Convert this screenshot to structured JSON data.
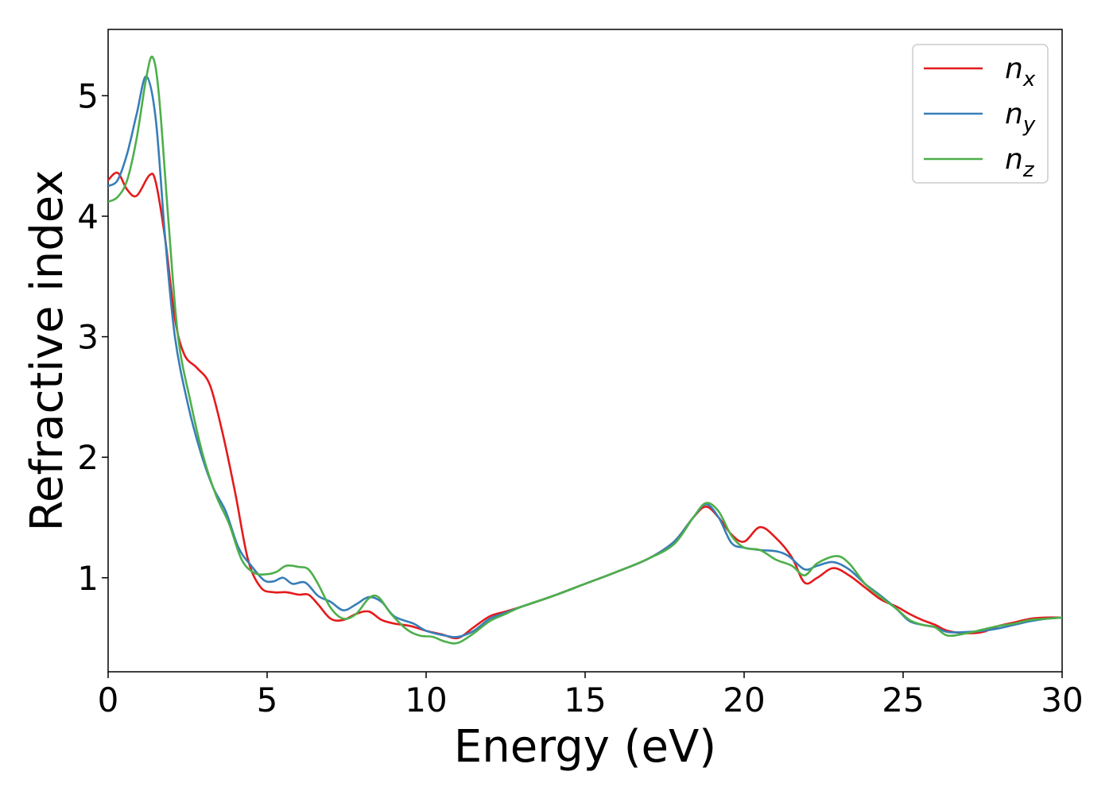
{
  "chart_data": {
    "type": "line",
    "title": "",
    "xlabel": "Energy (eV)",
    "ylabel": "Refractive index",
    "xlim": [
      0,
      30
    ],
    "ylim": [
      0.22,
      5.55
    ],
    "xticks": [
      0,
      5,
      10,
      15,
      20,
      25,
      30
    ],
    "yticks": [
      1,
      2,
      3,
      4,
      5
    ],
    "grid": false,
    "legend_position": "top-right",
    "series": [
      {
        "name": "n_x",
        "label_base": "n",
        "label_sub": "x",
        "color": "#e41a1c",
        "points": [
          [
            0,
            4.3
          ],
          [
            0.3,
            4.36
          ],
          [
            0.6,
            4.22
          ],
          [
            0.9,
            4.17
          ],
          [
            1.3,
            4.34
          ],
          [
            1.5,
            4.28
          ],
          [
            1.8,
            3.8
          ],
          [
            2.1,
            3.15
          ],
          [
            2.4,
            2.85
          ],
          [
            2.8,
            2.74
          ],
          [
            3.2,
            2.6
          ],
          [
            3.6,
            2.2
          ],
          [
            4.0,
            1.7
          ],
          [
            4.4,
            1.15
          ],
          [
            4.8,
            0.92
          ],
          [
            5.2,
            0.88
          ],
          [
            5.6,
            0.88
          ],
          [
            6.0,
            0.86
          ],
          [
            6.3,
            0.86
          ],
          [
            6.6,
            0.78
          ],
          [
            7.0,
            0.66
          ],
          [
            7.4,
            0.65
          ],
          [
            7.8,
            0.7
          ],
          [
            8.2,
            0.72
          ],
          [
            8.6,
            0.65
          ],
          [
            9.0,
            0.62
          ],
          [
            9.5,
            0.6
          ],
          [
            10.0,
            0.56
          ],
          [
            10.5,
            0.53
          ],
          [
            11.0,
            0.5
          ],
          [
            11.5,
            0.59
          ],
          [
            12.0,
            0.68
          ],
          [
            12.5,
            0.72
          ],
          [
            13.0,
            0.76
          ],
          [
            14.0,
            0.85
          ],
          [
            15.0,
            0.95
          ],
          [
            16.0,
            1.05
          ],
          [
            17.0,
            1.16
          ],
          [
            17.8,
            1.3
          ],
          [
            18.4,
            1.5
          ],
          [
            18.8,
            1.59
          ],
          [
            19.2,
            1.5
          ],
          [
            19.6,
            1.36
          ],
          [
            20.0,
            1.3
          ],
          [
            20.5,
            1.42
          ],
          [
            21.0,
            1.33
          ],
          [
            21.5,
            1.17
          ],
          [
            21.9,
            0.96
          ],
          [
            22.3,
            1.0
          ],
          [
            22.8,
            1.08
          ],
          [
            23.3,
            1.02
          ],
          [
            23.8,
            0.92
          ],
          [
            24.3,
            0.82
          ],
          [
            24.8,
            0.76
          ],
          [
            25.2,
            0.7
          ],
          [
            25.6,
            0.65
          ],
          [
            26.0,
            0.61
          ],
          [
            26.4,
            0.56
          ],
          [
            27.0,
            0.54
          ],
          [
            27.5,
            0.55
          ],
          [
            28.0,
            0.6
          ],
          [
            28.5,
            0.63
          ],
          [
            29.0,
            0.66
          ],
          [
            29.5,
            0.67
          ],
          [
            30.0,
            0.67
          ]
        ]
      },
      {
        "name": "n_y",
        "label_base": "n",
        "label_sub": "y",
        "color": "#377eb8",
        "points": [
          [
            0,
            4.25
          ],
          [
            0.3,
            4.3
          ],
          [
            0.6,
            4.52
          ],
          [
            0.9,
            4.85
          ],
          [
            1.2,
            5.16
          ],
          [
            1.5,
            4.8
          ],
          [
            1.8,
            3.8
          ],
          [
            2.1,
            3.0
          ],
          [
            2.5,
            2.45
          ],
          [
            2.9,
            2.05
          ],
          [
            3.3,
            1.75
          ],
          [
            3.7,
            1.55
          ],
          [
            4.1,
            1.25
          ],
          [
            4.5,
            1.1
          ],
          [
            4.9,
            0.98
          ],
          [
            5.2,
            0.97
          ],
          [
            5.5,
            1.0
          ],
          [
            5.8,
            0.95
          ],
          [
            6.2,
            0.96
          ],
          [
            6.6,
            0.85
          ],
          [
            7.0,
            0.8
          ],
          [
            7.4,
            0.73
          ],
          [
            7.8,
            0.78
          ],
          [
            8.2,
            0.84
          ],
          [
            8.6,
            0.8
          ],
          [
            9.0,
            0.68
          ],
          [
            9.6,
            0.62
          ],
          [
            10.0,
            0.56
          ],
          [
            10.6,
            0.52
          ],
          [
            11.0,
            0.51
          ],
          [
            11.5,
            0.56
          ],
          [
            12.0,
            0.66
          ],
          [
            12.5,
            0.71
          ],
          [
            13.0,
            0.76
          ],
          [
            14.0,
            0.85
          ],
          [
            15.0,
            0.95
          ],
          [
            16.0,
            1.05
          ],
          [
            17.0,
            1.16
          ],
          [
            17.8,
            1.3
          ],
          [
            18.4,
            1.5
          ],
          [
            18.8,
            1.61
          ],
          [
            19.2,
            1.5
          ],
          [
            19.6,
            1.29
          ],
          [
            20.0,
            1.25
          ],
          [
            20.5,
            1.23
          ],
          [
            21.0,
            1.22
          ],
          [
            21.4,
            1.18
          ],
          [
            21.9,
            1.07
          ],
          [
            22.3,
            1.1
          ],
          [
            22.8,
            1.13
          ],
          [
            23.3,
            1.07
          ],
          [
            23.8,
            0.95
          ],
          [
            24.3,
            0.85
          ],
          [
            24.8,
            0.74
          ],
          [
            25.2,
            0.64
          ],
          [
            25.6,
            0.61
          ],
          [
            26.0,
            0.59
          ],
          [
            26.4,
            0.55
          ],
          [
            27.0,
            0.55
          ],
          [
            27.5,
            0.56
          ],
          [
            28.0,
            0.58
          ],
          [
            28.5,
            0.61
          ],
          [
            29.0,
            0.64
          ],
          [
            29.5,
            0.66
          ],
          [
            30.0,
            0.67
          ]
        ]
      },
      {
        "name": "n_z",
        "label_base": "n",
        "label_sub": "z",
        "color": "#4daf4a",
        "points": [
          [
            0,
            4.12
          ],
          [
            0.3,
            4.16
          ],
          [
            0.6,
            4.3
          ],
          [
            0.9,
            4.65
          ],
          [
            1.2,
            5.15
          ],
          [
            1.4,
            5.32
          ],
          [
            1.6,
            5.0
          ],
          [
            1.9,
            3.95
          ],
          [
            2.2,
            3.0
          ],
          [
            2.6,
            2.45
          ],
          [
            3.0,
            2.0
          ],
          [
            3.4,
            1.68
          ],
          [
            3.8,
            1.45
          ],
          [
            4.2,
            1.15
          ],
          [
            4.6,
            1.04
          ],
          [
            5.0,
            1.03
          ],
          [
            5.3,
            1.05
          ],
          [
            5.6,
            1.1
          ],
          [
            6.0,
            1.09
          ],
          [
            6.3,
            1.07
          ],
          [
            6.6,
            0.95
          ],
          [
            7.0,
            0.75
          ],
          [
            7.4,
            0.66
          ],
          [
            7.8,
            0.7
          ],
          [
            8.2,
            0.83
          ],
          [
            8.5,
            0.84
          ],
          [
            8.9,
            0.7
          ],
          [
            9.4,
            0.57
          ],
          [
            9.8,
            0.52
          ],
          [
            10.2,
            0.51
          ],
          [
            10.6,
            0.47
          ],
          [
            11.0,
            0.46
          ],
          [
            11.5,
            0.54
          ],
          [
            12.0,
            0.64
          ],
          [
            12.5,
            0.7
          ],
          [
            13.0,
            0.76
          ],
          [
            14.0,
            0.85
          ],
          [
            15.0,
            0.95
          ],
          [
            16.0,
            1.05
          ],
          [
            17.0,
            1.16
          ],
          [
            17.8,
            1.28
          ],
          [
            18.4,
            1.5
          ],
          [
            18.8,
            1.62
          ],
          [
            19.2,
            1.55
          ],
          [
            19.6,
            1.35
          ],
          [
            20.0,
            1.25
          ],
          [
            20.5,
            1.23
          ],
          [
            21.0,
            1.15
          ],
          [
            21.5,
            1.1
          ],
          [
            21.9,
            1.02
          ],
          [
            22.3,
            1.12
          ],
          [
            22.9,
            1.18
          ],
          [
            23.3,
            1.12
          ],
          [
            23.8,
            0.95
          ],
          [
            24.3,
            0.84
          ],
          [
            24.8,
            0.74
          ],
          [
            25.2,
            0.65
          ],
          [
            25.6,
            0.61
          ],
          [
            26.0,
            0.59
          ],
          [
            26.4,
            0.52
          ],
          [
            27.0,
            0.54
          ],
          [
            27.5,
            0.57
          ],
          [
            28.0,
            0.6
          ],
          [
            28.5,
            0.62
          ],
          [
            29.0,
            0.65
          ],
          [
            29.5,
            0.66
          ],
          [
            30.0,
            0.67
          ]
        ]
      }
    ]
  }
}
